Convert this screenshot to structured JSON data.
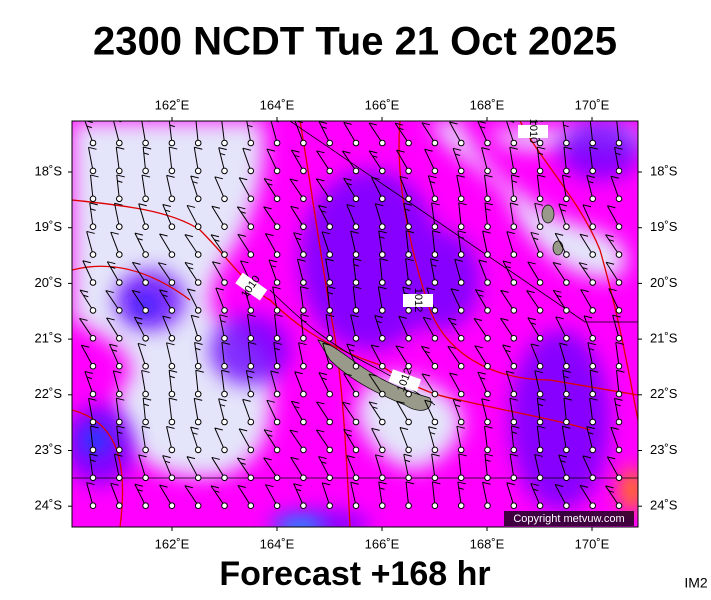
{
  "header": {
    "title": "2300 NCDT Tue 21 Oct 2025"
  },
  "map": {
    "lon_labels": [
      "162˚E",
      "164˚E",
      "166˚E",
      "168˚E",
      "170˚E"
    ],
    "lat_labels": [
      "18˚S",
      "19˚S",
      "20˚S",
      "21˚S",
      "22˚S",
      "23˚S",
      "24˚S"
    ],
    "contour_labels": [
      "1010",
      "1010",
      "1012",
      "1012"
    ],
    "copyright": "Copyright metvuw.com"
  },
  "footer": {
    "forecast": "Forecast +168 hr",
    "image_id": "IM2"
  }
}
